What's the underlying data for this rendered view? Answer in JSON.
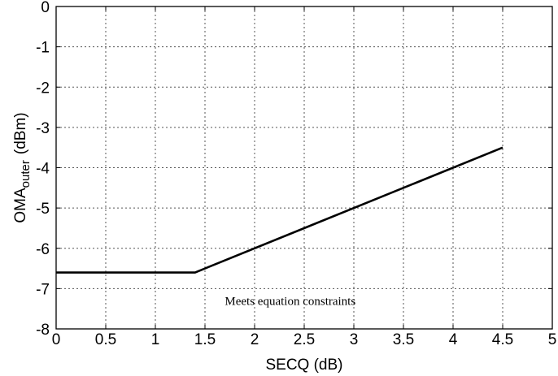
{
  "chart_data": {
    "type": "line",
    "xlabel": "SECQ (dB)",
    "ylabel": {
      "main": "OMA",
      "subscript": "outer",
      "unit": "(dBm)"
    },
    "xlim": [
      0,
      5
    ],
    "ylim": [
      -8,
      0
    ],
    "x_ticks": [
      0,
      0.5,
      1,
      1.5,
      2,
      2.5,
      3,
      3.5,
      4,
      4.5,
      5
    ],
    "y_ticks": [
      0,
      -1,
      -2,
      -3,
      -4,
      -5,
      -6,
      -7,
      -8
    ],
    "x_tick_labels": [
      "0",
      "0.5",
      "1",
      "1.5",
      "2",
      "2.5",
      "3",
      "3.5",
      "4",
      "4.5",
      "5"
    ],
    "y_tick_labels": [
      "0",
      "-1",
      "-2",
      "-3",
      "-4",
      "-5",
      "-6",
      "-7",
      "-8"
    ],
    "grid": true,
    "series": [
      {
        "x": [
          0,
          1.4,
          4.5
        ],
        "y": [
          -6.6,
          -6.6,
          -3.5
        ]
      }
    ],
    "annotations": [
      {
        "text": "Meets equation constraints",
        "x": 1.7,
        "y": -7.3
      }
    ]
  }
}
